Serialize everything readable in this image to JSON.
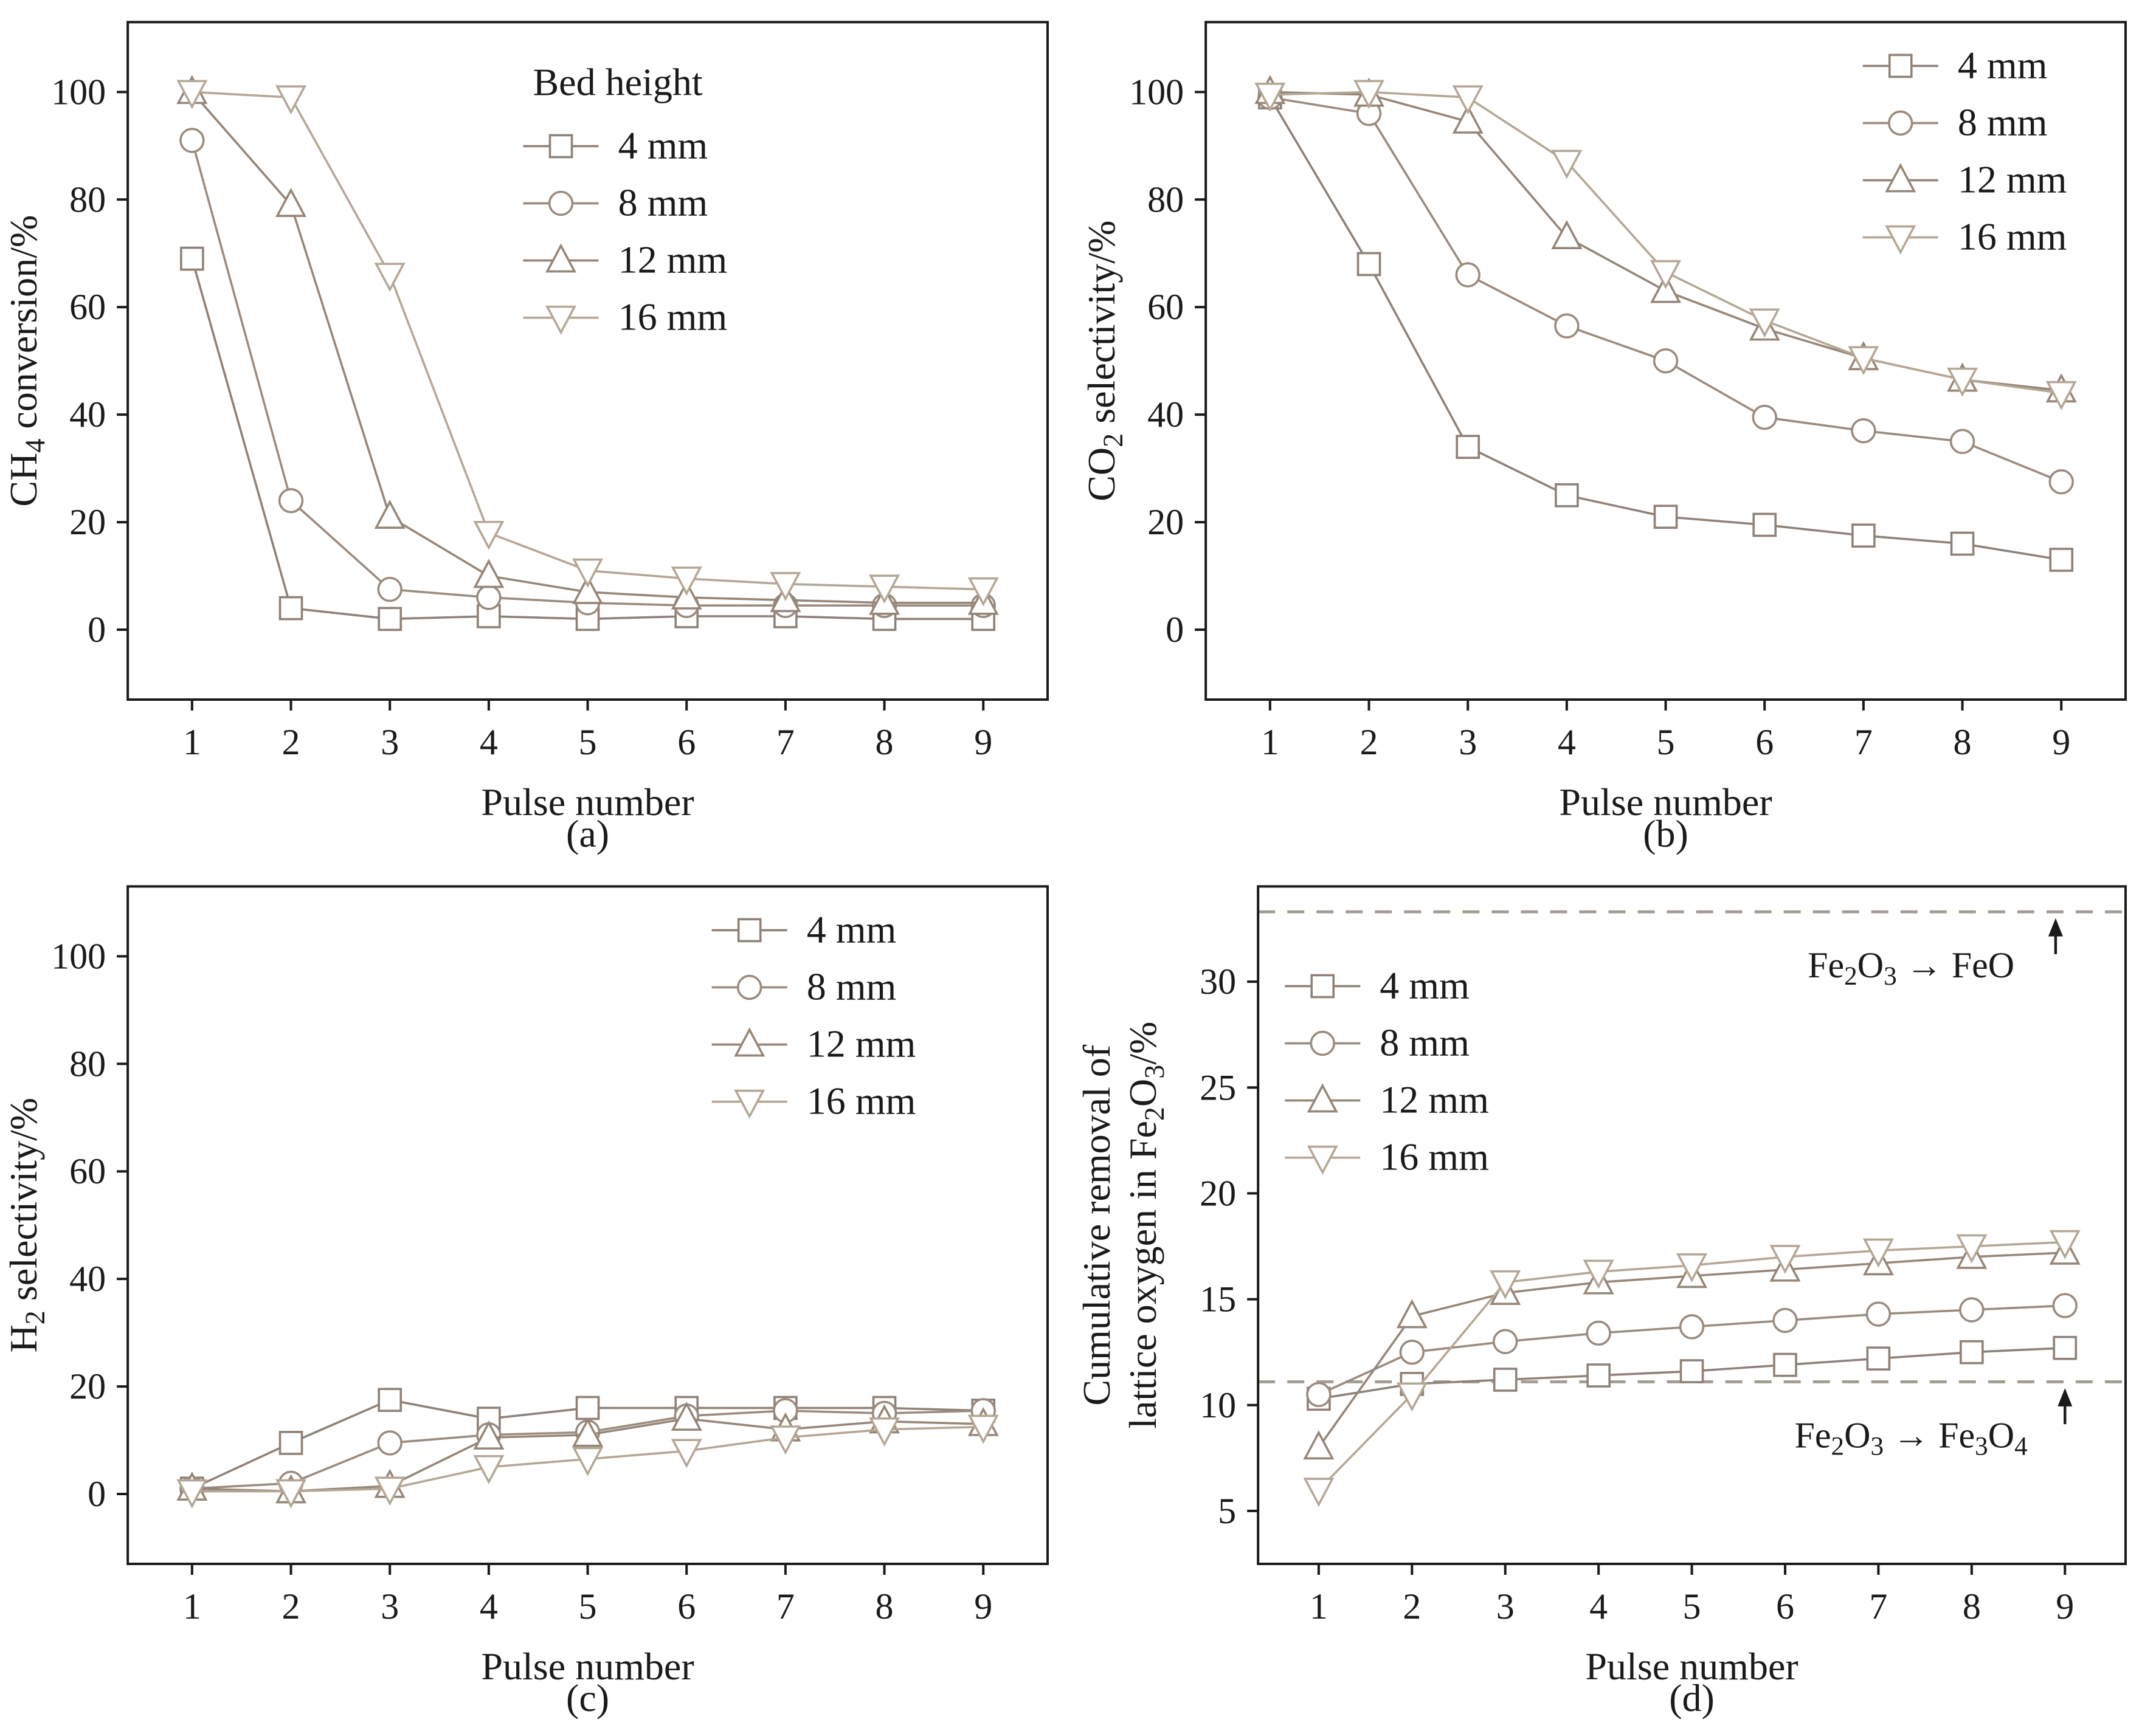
{
  "chart_data": [
    {
      "type": "line",
      "panel": "a",
      "xlabel": "Pulse number",
      "ylabel": "CH~4~ conversion/%",
      "x": [
        1,
        2,
        3,
        4,
        5,
        6,
        7,
        8,
        9
      ],
      "xlim": [
        0.35,
        9.65
      ],
      "ylim": [
        -13,
        113
      ],
      "yticks": [
        0,
        20,
        40,
        60,
        80,
        100
      ],
      "legend_title": "Bed height",
      "legend_position": "top-right",
      "grid": false,
      "series": [
        {
          "name": "4 mm",
          "marker": "square",
          "color": "#8f8177",
          "values": [
            69,
            4,
            2,
            2.5,
            2,
            2.5,
            2.5,
            2,
            2
          ]
        },
        {
          "name": "8 mm",
          "marker": "circle",
          "color": "#9b8b7e",
          "values": [
            91,
            24,
            7.5,
            6,
            5,
            4.5,
            4.5,
            4.5,
            4.5
          ]
        },
        {
          "name": "12 mm",
          "marker": "triangle-up",
          "color": "#968678",
          "values": [
            100,
            79,
            21,
            10,
            7,
            6,
            5.5,
            5,
            5
          ]
        },
        {
          "name": "16 mm",
          "marker": "triangle-down",
          "color": "#b5a795",
          "values": [
            100,
            99,
            66,
            18,
            11,
            9.5,
            8.5,
            8,
            7.5
          ]
        }
      ]
    },
    {
      "type": "line",
      "panel": "b",
      "xlabel": "Pulse number",
      "ylabel": "CO~2~ selectivity/%",
      "x": [
        1,
        2,
        3,
        4,
        5,
        6,
        7,
        8,
        9
      ],
      "xlim": [
        0.35,
        9.65
      ],
      "ylim": [
        -13,
        113
      ],
      "yticks": [
        0,
        20,
        40,
        60,
        80,
        100
      ],
      "legend_title": "",
      "legend_position": "top-right",
      "grid": false,
      "series": [
        {
          "name": "4 mm",
          "marker": "square",
          "color": "#8f8177",
          "values": [
            99,
            68,
            34,
            25,
            21,
            19.5,
            17.5,
            16,
            13
          ]
        },
        {
          "name": "8 mm",
          "marker": "circle",
          "color": "#9b8b7e",
          "values": [
            99,
            96,
            66,
            56.5,
            50,
            39.5,
            37,
            35,
            27.5
          ]
        },
        {
          "name": "12 mm",
          "marker": "triangle-up",
          "color": "#968678",
          "values": [
            100,
            99.5,
            94.5,
            73,
            63,
            56,
            50.5,
            46.5,
            44.5
          ]
        },
        {
          "name": "16 mm",
          "marker": "triangle-down",
          "color": "#b5a795",
          "values": [
            99.5,
            100,
            99,
            87,
            66.5,
            57.5,
            50.5,
            46.5,
            44
          ]
        }
      ]
    },
    {
      "type": "line",
      "panel": "c",
      "xlabel": "Pulse number",
      "ylabel": "H~2~ selectivity/%",
      "x": [
        1,
        2,
        3,
        4,
        5,
        6,
        7,
        8,
        9
      ],
      "xlim": [
        0.35,
        9.65
      ],
      "ylim": [
        -13,
        113
      ],
      "yticks": [
        0,
        20,
        40,
        60,
        80,
        100
      ],
      "legend_title": "",
      "legend_position": "top-right",
      "grid": false,
      "series": [
        {
          "name": "4 mm",
          "marker": "square",
          "color": "#8f8177",
          "values": [
            1,
            9.5,
            17.5,
            14,
            16,
            16,
            16,
            16,
            15.5
          ]
        },
        {
          "name": "8 mm",
          "marker": "circle",
          "color": "#9b8b7e",
          "values": [
            1,
            2,
            9.5,
            11,
            11.5,
            14.5,
            15.5,
            15,
            15.5
          ]
        },
        {
          "name": "12 mm",
          "marker": "triangle-up",
          "color": "#968678",
          "values": [
            1,
            0.5,
            1.5,
            10.5,
            11,
            14,
            12,
            13.5,
            13
          ]
        },
        {
          "name": "16 mm",
          "marker": "triangle-down",
          "color": "#b5a795",
          "values": [
            0.5,
            0.5,
            1,
            5,
            6.5,
            8,
            10.5,
            12,
            12.5
          ]
        }
      ]
    },
    {
      "type": "line",
      "panel": "d",
      "xlabel": "Pulse number",
      "ylabel": "Cumulative removal of\nlattice oxygen in Fe~2~O~3~/%",
      "x": [
        1,
        2,
        3,
        4,
        5,
        6,
        7,
        8,
        9
      ],
      "xlim": [
        0.35,
        9.65
      ],
      "ylim": [
        2.5,
        34.5
      ],
      "yticks": [
        5,
        10,
        15,
        20,
        25,
        30
      ],
      "legend_title": "",
      "legend_position": "top-left",
      "grid": false,
      "dashed_lines": [
        {
          "y": 33.3
        },
        {
          "y": 11.1
        }
      ],
      "annotations": [
        {
          "text": "Fe~2~O~3~ → FeO",
          "x": 7.35,
          "y": 30.2,
          "arrow": {
            "x": 8.9,
            "from": 31.3,
            "to": 33.0
          }
        },
        {
          "text": "Fe~2~O~3~ → Fe~3~O~4~",
          "x": 7.35,
          "y": 8.0,
          "arrow": {
            "x": 9.0,
            "from": 9.1,
            "to": 10.8
          }
        }
      ],
      "series": [
        {
          "name": "4 mm",
          "marker": "square",
          "color": "#8f8177",
          "values": [
            10.3,
            11,
            11.2,
            11.4,
            11.6,
            11.9,
            12.2,
            12.5,
            12.7
          ]
        },
        {
          "name": "8 mm",
          "marker": "circle",
          "color": "#9b8b7e",
          "values": [
            10.5,
            12.5,
            13,
            13.4,
            13.7,
            14,
            14.3,
            14.5,
            14.7
          ]
        },
        {
          "name": "12 mm",
          "marker": "triangle-up",
          "color": "#968678",
          "values": [
            8,
            14.2,
            15.3,
            15.8,
            16.1,
            16.4,
            16.7,
            17,
            17.2
          ]
        },
        {
          "name": "16 mm",
          "marker": "triangle-down",
          "color": "#b5a795",
          "values": [
            6,
            10.5,
            15.8,
            16.3,
            16.6,
            17,
            17.3,
            17.5,
            17.7
          ]
        }
      ]
    }
  ],
  "panel_tags": {
    "a": "(a)",
    "b": "(b)",
    "c": "(c)",
    "d": "(d)"
  },
  "colors": {
    "axis": "#1a1a1a",
    "dashed_line": "#a39c90",
    "marker_fill": "#ffffff"
  }
}
